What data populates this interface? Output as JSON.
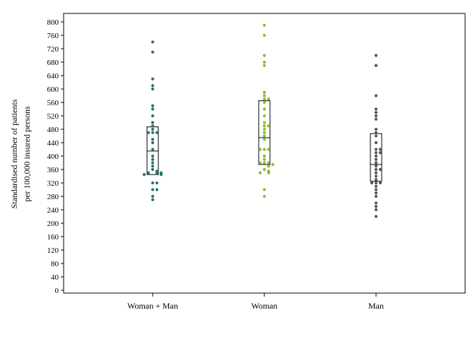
{
  "chart_data": {
    "type": "scatter",
    "title": "",
    "ylabel_lines": [
      "Standardised number of patients",
      "per 100,000 insured persons"
    ],
    "xlabel": "",
    "ylim": [
      0,
      820
    ],
    "yticks": [
      0,
      40,
      80,
      120,
      160,
      200,
      240,
      280,
      320,
      360,
      400,
      440,
      480,
      520,
      560,
      600,
      640,
      680,
      720,
      760,
      800
    ],
    "grid": false,
    "legend": "none",
    "categories": [
      "Woman + Man",
      "Woman",
      "Man"
    ],
    "series": [
      {
        "category": "Woman + Man",
        "color": "#2a7371",
        "box": {
          "q1": 345,
          "median": 415,
          "q3": 487
        },
        "values": [
          740,
          710,
          630,
          610,
          600,
          550,
          540,
          520,
          500,
          490,
          480,
          470,
          470,
          470,
          450,
          440,
          420,
          400,
          390,
          380,
          370,
          360,
          355,
          350,
          350,
          350,
          345,
          345,
          320,
          320,
          300,
          300,
          280,
          270
        ]
      },
      {
        "category": "Woman",
        "color": "#8cbd2e",
        "box": {
          "q1": 375,
          "median": 455,
          "q3": 565
        },
        "values": [
          790,
          760,
          700,
          680,
          670,
          590,
          580,
          570,
          570,
          560,
          540,
          520,
          500,
          490,
          490,
          480,
          470,
          460,
          450,
          420,
          420,
          420,
          400,
          390,
          380,
          380,
          380,
          375,
          370,
          360,
          355,
          350,
          350,
          300,
          280
        ]
      },
      {
        "category": "Man",
        "color": "#555555",
        "box": {
          "q1": 325,
          "median": 375,
          "q3": 467
        },
        "values": [
          700,
          670,
          580,
          540,
          530,
          520,
          510,
          480,
          470,
          460,
          440,
          420,
          420,
          410,
          410,
          400,
          390,
          380,
          370,
          360,
          360,
          350,
          340,
          330,
          320,
          320,
          320,
          310,
          300,
          290,
          280,
          260,
          250,
          240,
          220
        ]
      }
    ]
  }
}
